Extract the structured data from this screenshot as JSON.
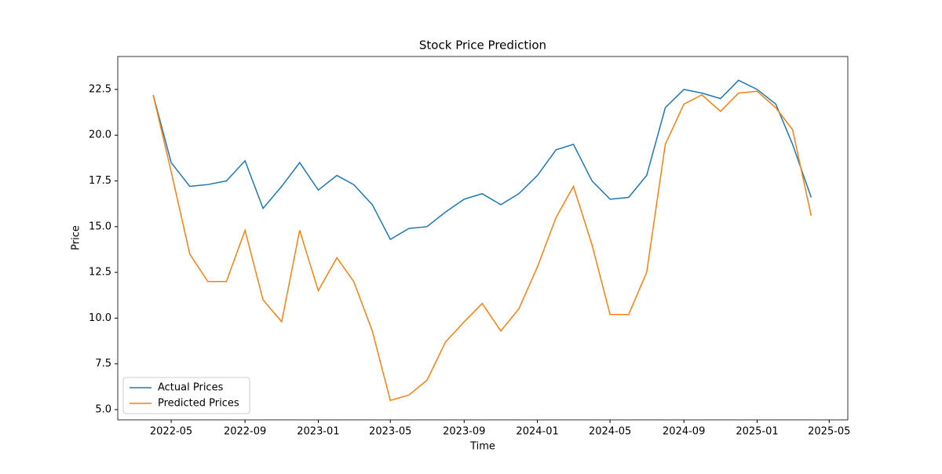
{
  "chart_data": {
    "type": "line",
    "title": "Stock Price Prediction",
    "x_label": "Time",
    "y_label": "Price",
    "x": [
      "2022-04",
      "2022-05",
      "2022-06",
      "2022-07",
      "2022-08",
      "2022-09",
      "2022-10",
      "2022-11",
      "2022-12",
      "2023-01",
      "2023-02",
      "2023-03",
      "2023-04",
      "2023-05",
      "2023-06",
      "2023-07",
      "2023-08",
      "2023-09",
      "2023-10",
      "2023-11",
      "2023-12",
      "2024-01",
      "2024-02",
      "2024-03",
      "2024-04",
      "2024-05",
      "2024-06",
      "2024-07",
      "2024-08",
      "2024-09",
      "2024-10",
      "2024-11",
      "2024-12",
      "2025-01",
      "2025-02",
      "2025-03",
      "2025-04"
    ],
    "series": [
      {
        "name": "Actual Prices",
        "color": "#1f77b4",
        "values": [
          22.2,
          18.5,
          17.2,
          17.3,
          17.5,
          18.6,
          16.0,
          17.2,
          18.5,
          17.0,
          17.8,
          17.3,
          16.2,
          14.3,
          14.9,
          15.0,
          15.8,
          16.5,
          16.8,
          16.2,
          16.8,
          17.8,
          19.2,
          19.5,
          17.5,
          16.5,
          16.6,
          17.8,
          21.5,
          22.5,
          22.3,
          22.0,
          23.0,
          22.5,
          21.7,
          19.5,
          16.6
        ]
      },
      {
        "name": "Predicted Prices",
        "color": "#ff7f0e",
        "values": [
          22.2,
          18.0,
          13.5,
          12.0,
          12.0,
          14.8,
          11.0,
          9.8,
          14.8,
          11.5,
          13.3,
          12.0,
          9.3,
          5.5,
          5.8,
          6.6,
          8.7,
          9.8,
          10.8,
          9.3,
          10.5,
          12.8,
          15.5,
          17.2,
          14.0,
          10.2,
          10.2,
          12.5,
          19.5,
          21.7,
          22.2,
          21.3,
          22.3,
          22.4,
          21.5,
          20.3,
          15.6
        ]
      }
    ],
    "xlim": [
      "2022-02",
      "2025-06"
    ],
    "xticks": [
      "2022-05",
      "2022-09",
      "2023-01",
      "2023-05",
      "2023-09",
      "2024-01",
      "2024-05",
      "2024-09",
      "2025-01",
      "2025-05"
    ],
    "ylim": [
      4.44,
      24.3
    ],
    "yticks": [
      {
        "value": 5,
        "label": "5.0"
      },
      7.5,
      {
        "value": 10,
        "label": "10.0"
      },
      12.5,
      {
        "value": 15,
        "label": "15.0"
      },
      17.5,
      {
        "value": 20,
        "label": "20.0"
      },
      22.5
    ],
    "legend": "lower left"
  }
}
